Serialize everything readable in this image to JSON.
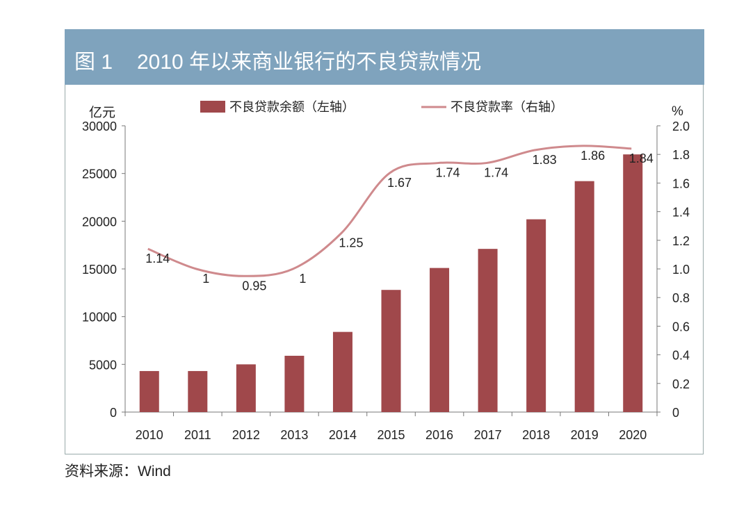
{
  "figure": {
    "number": "图 1",
    "title": "2010 年以来商业银行的不良贷款情况"
  },
  "source": "资料来源：Wind",
  "colors": {
    "header": "#7fa3bd",
    "bar": "#a0484b",
    "line": "#cf8a8d"
  },
  "chart_data": {
    "type": "bar+line",
    "categories": [
      "2010",
      "2011",
      "2012",
      "2013",
      "2014",
      "2015",
      "2016",
      "2017",
      "2018",
      "2019",
      "2020"
    ],
    "series": [
      {
        "name": "不良贷款余额（左轴）",
        "type": "bar",
        "axis": "left",
        "values": [
          4300,
          4300,
          5000,
          5900,
          8400,
          12800,
          15100,
          17100,
          20200,
          24200,
          27000
        ]
      },
      {
        "name": "不良贷款率（右轴）",
        "type": "line",
        "axis": "right",
        "values": [
          1.14,
          1,
          0.95,
          1,
          1.25,
          1.67,
          1.74,
          1.74,
          1.83,
          1.86,
          1.84
        ],
        "labels": [
          "1.14",
          "1",
          "0.95",
          "1",
          "1.25",
          "1.67",
          "1.74",
          "1.74",
          "1.83",
          "1.86",
          "1.84"
        ]
      }
    ],
    "yleft": {
      "label": "亿元",
      "range": [
        0,
        30000
      ],
      "ticks": [
        "0",
        "5000",
        "10000",
        "15000",
        "20000",
        "25000",
        "30000"
      ]
    },
    "yright": {
      "label": "%",
      "range": [
        0,
        2.0
      ],
      "ticks": [
        "0",
        "0.2",
        "0.4",
        "0.6",
        "0.8",
        "1.0",
        "1.2",
        "1.4",
        "1.6",
        "1.8",
        "2.0"
      ]
    },
    "legend_position": "top",
    "grid": false
  }
}
